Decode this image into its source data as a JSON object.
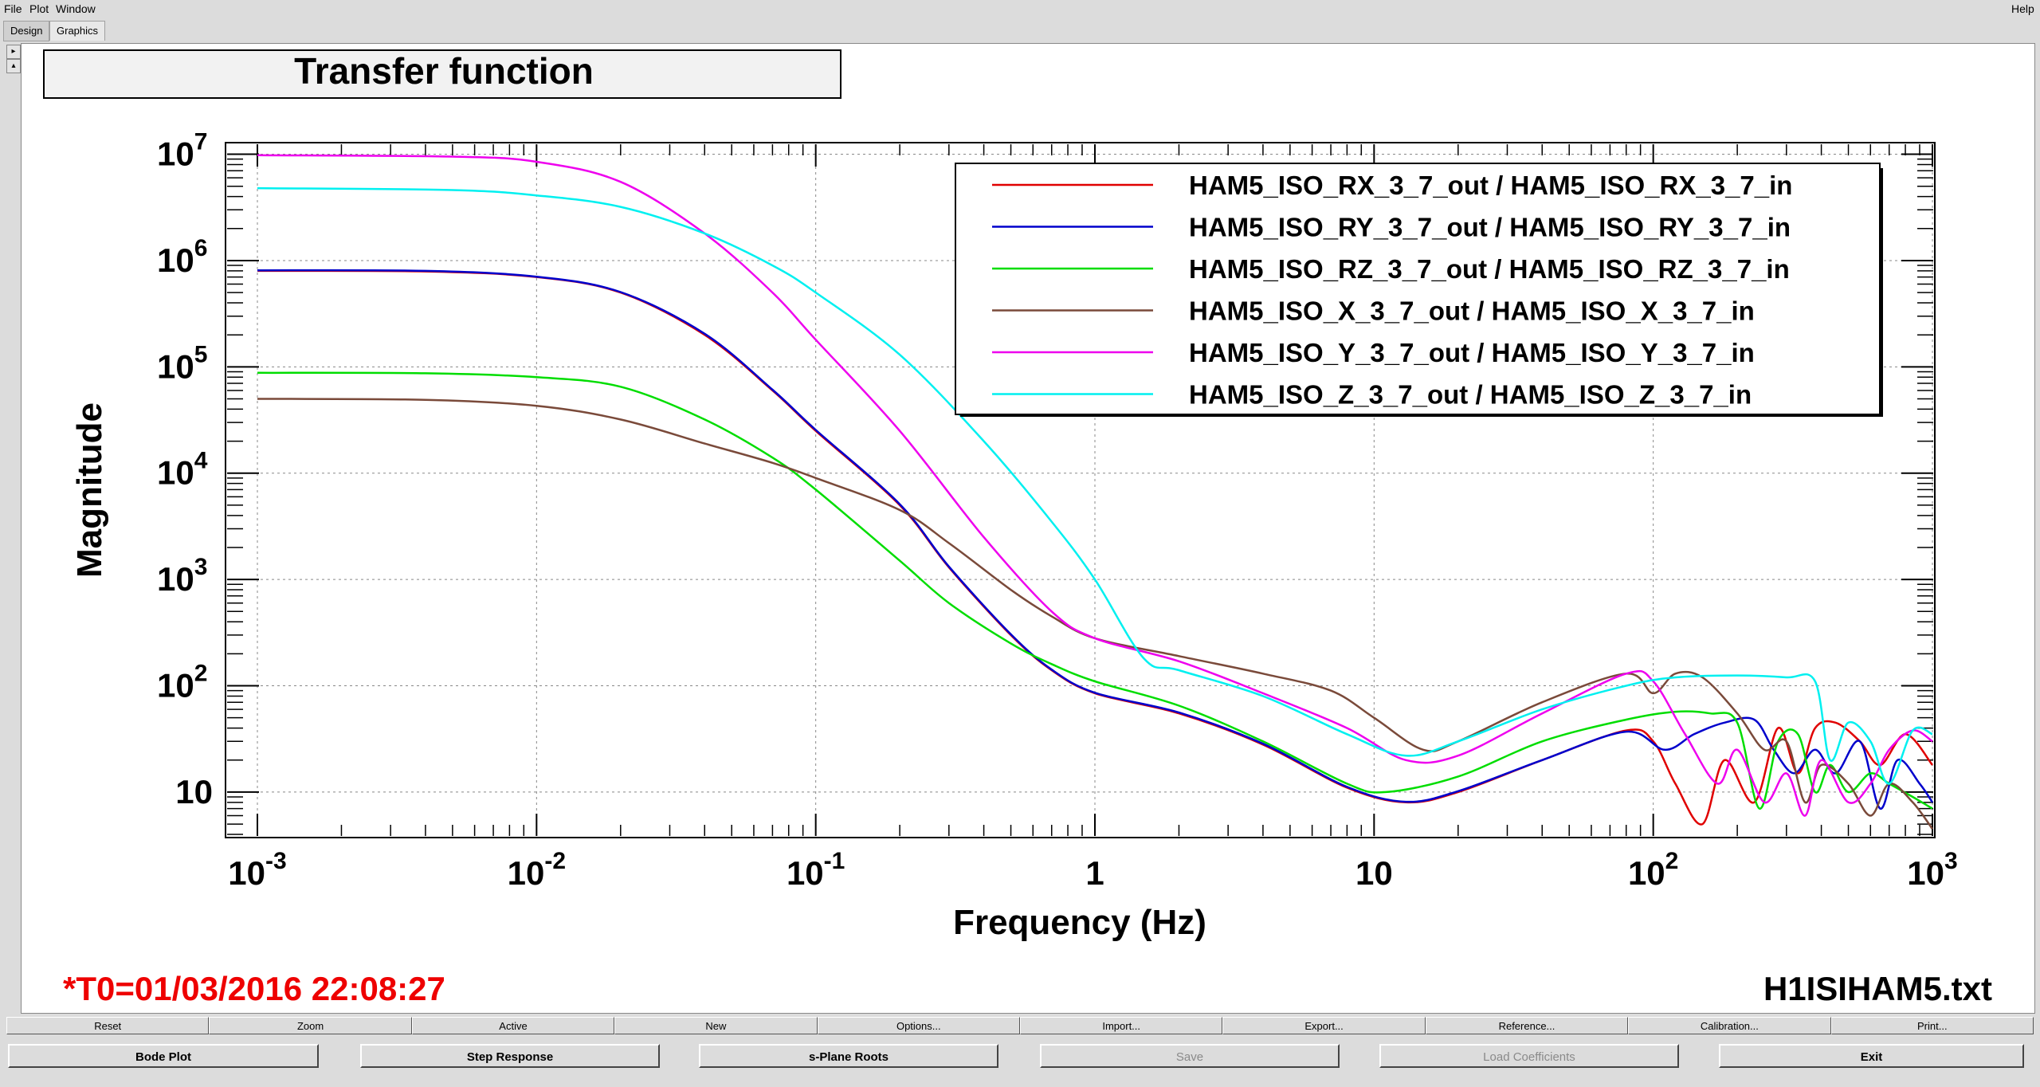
{
  "menu": {
    "file": "File",
    "plot": "Plot",
    "window": "Window",
    "help": "Help"
  },
  "tabs": [
    "Design",
    "Graphics"
  ],
  "side_arrows": [
    "▸",
    "▴"
  ],
  "plot": {
    "title": "Transfer function",
    "timestamp": "*T0=01/03/2016 22:08:27",
    "filename": "H1ISIHAM5.txt"
  },
  "chart_data": {
    "type": "line",
    "title": "Transfer function",
    "xlabel": "Frequency (Hz)",
    "ylabel": "Magnitude",
    "xscale": "log",
    "yscale": "log",
    "xlim": [
      0.001,
      1000
    ],
    "ylim": [
      4,
      12000000
    ],
    "grid": true,
    "legend_position": "top-right",
    "x_ticks": [
      {
        "value": 0.001,
        "base": "10",
        "exp": "-3"
      },
      {
        "value": 0.01,
        "base": "10",
        "exp": "-2"
      },
      {
        "value": 0.1,
        "base": "10",
        "exp": "-1"
      },
      {
        "value": 1,
        "base": "1",
        "exp": ""
      },
      {
        "value": 10,
        "base": "10",
        "exp": ""
      },
      {
        "value": 100,
        "base": "10",
        "exp": "2"
      },
      {
        "value": 1000,
        "base": "10",
        "exp": "3"
      }
    ],
    "y_ticks": [
      {
        "value": 10,
        "base": "10",
        "exp": ""
      },
      {
        "value": 100,
        "base": "10",
        "exp": "2"
      },
      {
        "value": 1000,
        "base": "10",
        "exp": "3"
      },
      {
        "value": 10000,
        "base": "10",
        "exp": "4"
      },
      {
        "value": 100000,
        "base": "10",
        "exp": "5"
      },
      {
        "value": 1000000,
        "base": "10",
        "exp": "6"
      },
      {
        "value": 10000000,
        "base": "10",
        "exp": "7"
      }
    ],
    "series": [
      {
        "name": "HAM5_ISO_RX_3_7_out / HAM5_ISO_RX_3_7_in",
        "color": "#e00000",
        "points": [
          [
            0.001,
            800000
          ],
          [
            0.004,
            790000
          ],
          [
            0.01,
            700000
          ],
          [
            0.02,
            500000
          ],
          [
            0.04,
            200000
          ],
          [
            0.07,
            60000
          ],
          [
            0.1,
            25000
          ],
          [
            0.2,
            5000
          ],
          [
            0.3,
            1300
          ],
          [
            0.5,
            300
          ],
          [
            0.7,
            140
          ],
          [
            1,
            85
          ],
          [
            2,
            55
          ],
          [
            4,
            28
          ],
          [
            8,
            11
          ],
          [
            13,
            8
          ],
          [
            20,
            10
          ],
          [
            40,
            20
          ],
          [
            80,
            38
          ],
          [
            100,
            30
          ],
          [
            120,
            12
          ],
          [
            150,
            5
          ],
          [
            180,
            20
          ],
          [
            230,
            8
          ],
          [
            280,
            40
          ],
          [
            330,
            15
          ],
          [
            380,
            40
          ],
          [
            450,
            45
          ],
          [
            550,
            30
          ],
          [
            650,
            18
          ],
          [
            800,
            35
          ],
          [
            1000,
            18
          ]
        ]
      },
      {
        "name": "HAM5_ISO_RY_3_7_out / HAM5_ISO_RY_3_7_in",
        "color": "#0000cc",
        "points": [
          [
            0.001,
            810000
          ],
          [
            0.004,
            800000
          ],
          [
            0.01,
            705000
          ],
          [
            0.02,
            505000
          ],
          [
            0.04,
            205000
          ],
          [
            0.07,
            61000
          ],
          [
            0.1,
            25500
          ],
          [
            0.2,
            5100
          ],
          [
            0.3,
            1320
          ],
          [
            0.5,
            305
          ],
          [
            0.7,
            142
          ],
          [
            1,
            86
          ],
          [
            2,
            56
          ],
          [
            4,
            28.5
          ],
          [
            8,
            11.2
          ],
          [
            13,
            8.1
          ],
          [
            20,
            10.2
          ],
          [
            40,
            20
          ],
          [
            80,
            37
          ],
          [
            110,
            25
          ],
          [
            140,
            35
          ],
          [
            180,
            45
          ],
          [
            230,
            48
          ],
          [
            270,
            25
          ],
          [
            320,
            15
          ],
          [
            380,
            25
          ],
          [
            450,
            15
          ],
          [
            550,
            30
          ],
          [
            650,
            7
          ],
          [
            750,
            20
          ],
          [
            900,
            12
          ],
          [
            1000,
            8
          ]
        ]
      },
      {
        "name": "HAM5_ISO_RZ_3_7_out / HAM5_ISO_RZ_3_7_in",
        "color": "#00dd00",
        "points": [
          [
            0.001,
            88000
          ],
          [
            0.004,
            87000
          ],
          [
            0.01,
            80000
          ],
          [
            0.02,
            65000
          ],
          [
            0.04,
            32000
          ],
          [
            0.07,
            14000
          ],
          [
            0.1,
            7000
          ],
          [
            0.2,
            1500
          ],
          [
            0.3,
            600
          ],
          [
            0.5,
            250
          ],
          [
            0.7,
            160
          ],
          [
            1,
            110
          ],
          [
            2,
            65
          ],
          [
            4,
            30
          ],
          [
            8,
            12
          ],
          [
            11,
            10
          ],
          [
            20,
            14
          ],
          [
            40,
            30
          ],
          [
            80,
            48
          ],
          [
            120,
            57
          ],
          [
            160,
            55
          ],
          [
            200,
            45
          ],
          [
            240,
            7
          ],
          [
            280,
            30
          ],
          [
            330,
            35
          ],
          [
            380,
            10
          ],
          [
            430,
            18
          ],
          [
            500,
            10
          ],
          [
            600,
            15
          ],
          [
            700,
            12
          ],
          [
            850,
            9
          ],
          [
            1000,
            7
          ]
        ]
      },
      {
        "name": "HAM5_ISO_X_3_7_out / HAM5_ISO_X_3_7_in",
        "color": "#7a4a3a",
        "points": [
          [
            0.001,
            50000
          ],
          [
            0.004,
            49000
          ],
          [
            0.01,
            43000
          ],
          [
            0.02,
            32000
          ],
          [
            0.04,
            19000
          ],
          [
            0.07,
            12500
          ],
          [
            0.1,
            9000
          ],
          [
            0.2,
            4500
          ],
          [
            0.3,
            2200
          ],
          [
            0.5,
            800
          ],
          [
            0.7,
            450
          ],
          [
            1,
            280
          ],
          [
            2,
            190
          ],
          [
            4,
            130
          ],
          [
            7,
            90
          ],
          [
            10,
            50
          ],
          [
            15,
            25
          ],
          [
            20,
            30
          ],
          [
            40,
            70
          ],
          [
            80,
            130
          ],
          [
            100,
            85
          ],
          [
            120,
            130
          ],
          [
            150,
            120
          ],
          [
            200,
            55
          ],
          [
            250,
            25
          ],
          [
            300,
            30
          ],
          [
            350,
            8
          ],
          [
            400,
            18
          ],
          [
            500,
            12
          ],
          [
            600,
            6
          ],
          [
            700,
            12
          ],
          [
            850,
            8
          ],
          [
            1000,
            4.5
          ]
        ]
      },
      {
        "name": "HAM5_ISO_Y_3_7_out / HAM5_ISO_Y_3_7_in",
        "color": "#ee00ee",
        "points": [
          [
            0.001,
            9800000
          ],
          [
            0.005,
            9500000
          ],
          [
            0.01,
            8500000
          ],
          [
            0.02,
            5500000
          ],
          [
            0.04,
            1800000
          ],
          [
            0.07,
            500000
          ],
          [
            0.1,
            180000
          ],
          [
            0.2,
            25000
          ],
          [
            0.4,
            2500
          ],
          [
            0.7,
            500
          ],
          [
            1,
            280
          ],
          [
            2,
            170
          ],
          [
            4,
            85
          ],
          [
            8,
            40
          ],
          [
            13,
            20
          ],
          [
            20,
            22
          ],
          [
            40,
            55
          ],
          [
            80,
            130
          ],
          [
            100,
            110
          ],
          [
            130,
            35
          ],
          [
            170,
            12
          ],
          [
            200,
            25
          ],
          [
            250,
            8
          ],
          [
            300,
            15
          ],
          [
            350,
            6
          ],
          [
            400,
            20
          ],
          [
            500,
            8
          ],
          [
            600,
            12
          ],
          [
            700,
            25
          ],
          [
            850,
            38
          ],
          [
            1000,
            30
          ]
        ]
      },
      {
        "name": "HAM5_ISO_Z_3_7_out / HAM5_ISO_Z_3_7_in",
        "color": "#00f0f0",
        "points": [
          [
            0.001,
            4800000
          ],
          [
            0.005,
            4600000
          ],
          [
            0.01,
            4100000
          ],
          [
            0.02,
            3200000
          ],
          [
            0.04,
            1800000
          ],
          [
            0.07,
            900000
          ],
          [
            0.1,
            500000
          ],
          [
            0.2,
            130000
          ],
          [
            0.4,
            20000
          ],
          [
            0.7,
            3500
          ],
          [
            1,
            1000
          ],
          [
            1.5,
            180
          ],
          [
            2,
            140
          ],
          [
            4,
            80
          ],
          [
            8,
            35
          ],
          [
            13,
            22
          ],
          [
            20,
            30
          ],
          [
            40,
            60
          ],
          [
            80,
            100
          ],
          [
            120,
            120
          ],
          [
            200,
            125
          ],
          [
            300,
            120
          ],
          [
            380,
            110
          ],
          [
            430,
            20
          ],
          [
            500,
            45
          ],
          [
            600,
            30
          ],
          [
            700,
            12
          ],
          [
            850,
            38
          ],
          [
            1000,
            35
          ]
        ]
      }
    ]
  },
  "toolbar_top": [
    "Reset",
    "Zoom",
    "Active",
    "New",
    "Options...",
    "Import...",
    "Export...",
    "Reference...",
    "Calibration...",
    "Print..."
  ],
  "toolbar_bottom": [
    {
      "label": "Bode Plot",
      "enabled": true
    },
    {
      "label": "Step Response",
      "enabled": true
    },
    {
      "label": "s-Plane Roots",
      "enabled": true
    },
    {
      "label": "Save",
      "enabled": false
    },
    {
      "label": "Load Coefficients",
      "enabled": false
    },
    {
      "label": "Exit",
      "enabled": true
    }
  ]
}
